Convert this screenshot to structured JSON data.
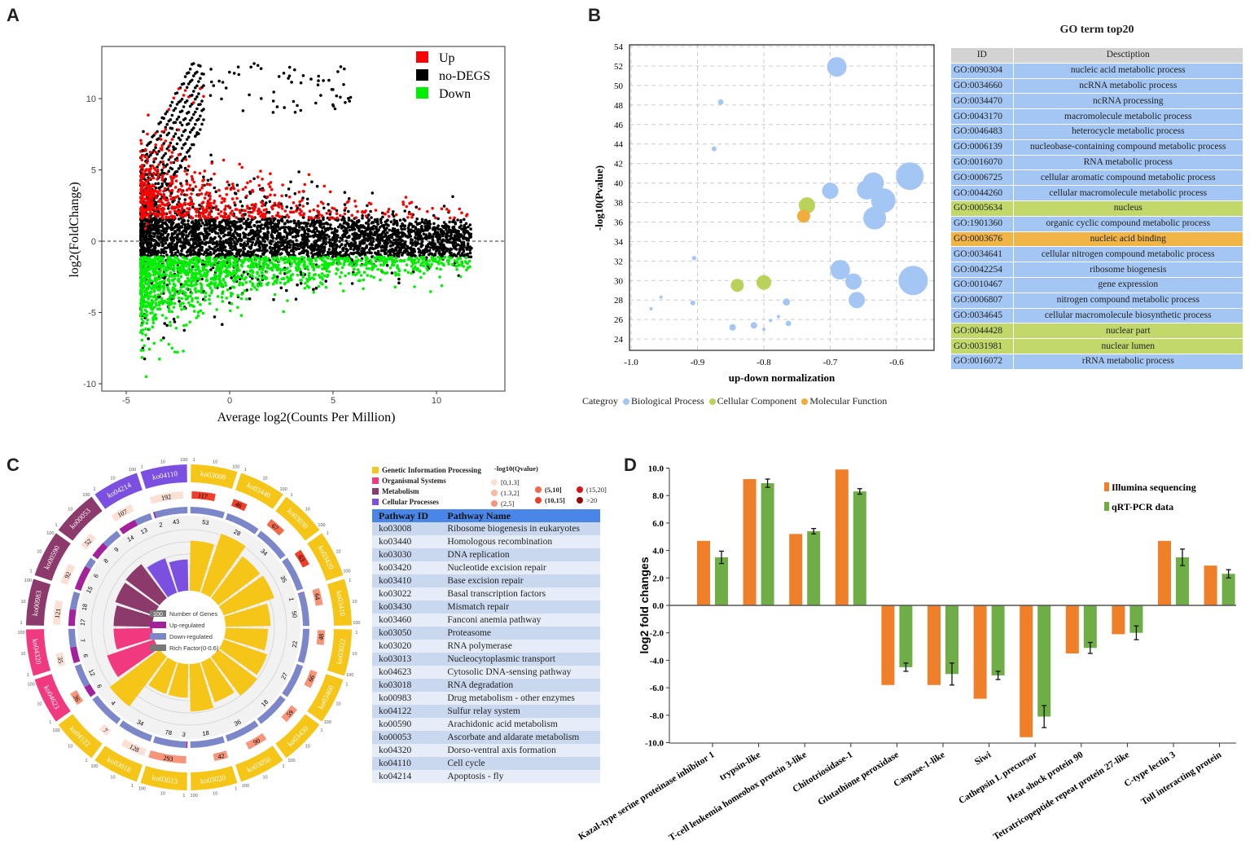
{
  "panels": {
    "a": "A",
    "b": "B",
    "c": "C",
    "d": "D"
  },
  "chart_data": [
    {
      "id": "A",
      "type": "scatter",
      "xlabel": "Average log2(Counts Per Million)",
      "ylabel": "log2(FoldChange)",
      "xlim": [
        -6.2,
        13.3
      ],
      "ylim": [
        -10.5,
        13.7
      ],
      "xticks": [
        -5,
        0,
        5,
        10
      ],
      "yticks": [
        10,
        5,
        0,
        -5,
        -10
      ],
      "reference_line_y": 0,
      "legend": [
        {
          "label": "Up",
          "color": "#ff0000"
        },
        {
          "label": "no-DEGS",
          "color": "#000000"
        },
        {
          "label": "Down",
          "color": "#00ee00"
        }
      ],
      "legend_position": "top-right"
    },
    {
      "id": "B",
      "type": "scatter",
      "xlabel": "up-down normalization",
      "ylabel": "-log10(Pvalue)",
      "xlim": [
        -1.0,
        -0.544
      ],
      "ylim": [
        22.8,
        54
      ],
      "xticks": [
        "-1.0",
        "-0.9",
        "-0.8",
        "-0.7",
        "-0.6"
      ],
      "yticks": [
        24,
        26,
        28,
        30,
        32,
        34,
        36,
        38,
        40,
        42,
        44,
        46,
        48,
        50,
        52,
        54
      ],
      "grid": true,
      "legend_title": "Categroy",
      "legend": [
        {
          "label": "Biological Process",
          "color": "#a4c6f4"
        },
        {
          "label": "Cellular Component",
          "color": "#b9d35a"
        },
        {
          "label": "Molecular Function",
          "color": "#f0ac3c"
        }
      ],
      "points": [
        {
          "x": -0.69,
          "y": 51.9,
          "size": 6,
          "cat": 0
        },
        {
          "x": -0.865,
          "y": 48.3,
          "size": 1.7,
          "cat": 0
        },
        {
          "x": -0.875,
          "y": 43.5,
          "size": 1.5,
          "cat": 0
        },
        {
          "x": -0.58,
          "y": 40.7,
          "size": 8.5,
          "cat": 0
        },
        {
          "x": -0.635,
          "y": 40.0,
          "size": 6.5,
          "cat": 0
        },
        {
          "x": -0.645,
          "y": 39.3,
          "size": 6,
          "cat": 0
        },
        {
          "x": -0.62,
          "y": 38.2,
          "size": 7.5,
          "cat": 0
        },
        {
          "x": -0.633,
          "y": 36.4,
          "size": 7,
          "cat": 0
        },
        {
          "x": -0.7,
          "y": 39.2,
          "size": 5,
          "cat": 0
        },
        {
          "x": -0.735,
          "y": 37.7,
          "size": 5,
          "cat": 1
        },
        {
          "x": -0.74,
          "y": 36.6,
          "size": 4,
          "cat": 2
        },
        {
          "x": -0.905,
          "y": 32.3,
          "size": 1.3,
          "cat": 0
        },
        {
          "x": -0.685,
          "y": 31.1,
          "size": 6,
          "cat": 0
        },
        {
          "x": -0.665,
          "y": 29.9,
          "size": 5,
          "cat": 0
        },
        {
          "x": -0.575,
          "y": 30.0,
          "size": 9,
          "cat": 0
        },
        {
          "x": -0.66,
          "y": 28.0,
          "size": 5,
          "cat": 0
        },
        {
          "x": -0.84,
          "y": 29.5,
          "size": 4,
          "cat": 1
        },
        {
          "x": -0.8,
          "y": 29.8,
          "size": 4.5,
          "cat": 1
        },
        {
          "x": -0.955,
          "y": 28.3,
          "size": 1,
          "cat": 0
        },
        {
          "x": -0.907,
          "y": 27.7,
          "size": 1.5,
          "cat": 0
        },
        {
          "x": -0.97,
          "y": 27.1,
          "size": 1,
          "cat": 0
        },
        {
          "x": -0.766,
          "y": 27.8,
          "size": 2.2,
          "cat": 0
        },
        {
          "x": -0.778,
          "y": 26.3,
          "size": 1,
          "cat": 0
        },
        {
          "x": -0.79,
          "y": 25.9,
          "size": 1,
          "cat": 0
        },
        {
          "x": -0.847,
          "y": 25.2,
          "size": 2,
          "cat": 0
        },
        {
          "x": -0.815,
          "y": 25.4,
          "size": 2,
          "cat": 0
        },
        {
          "x": -0.8,
          "y": 25.0,
          "size": 1,
          "cat": 0
        },
        {
          "x": -0.763,
          "y": 25.6,
          "size": 1.7,
          "cat": 0
        }
      ]
    },
    {
      "id": "C",
      "type": "circos",
      "center_legend": [
        {
          "label": "Number of Genes",
          "value": "100",
          "color": "#777777"
        },
        {
          "label": "Up-regulated",
          "color": "#a3229b"
        },
        {
          "label": "Down-regulated",
          "color": "#7c87c9"
        },
        {
          "label": "Rich Factor(0-0.6)",
          "color": "#777777"
        }
      ],
      "scale_labels": [
        "1",
        "10",
        "100"
      ],
      "categories": [
        {
          "label": "Genetic Information Processing",
          "color": "#f5c518"
        },
        {
          "label": "Organismal Systems",
          "color": "#f0397e"
        },
        {
          "label": "Metabolism",
          "color": "#8b3a6b"
        },
        {
          "label": "Cellular Processes",
          "color": "#7b4fe0"
        }
      ],
      "qvalue_legend_title": "-log10(Qvalue)",
      "qvalue_bins": [
        {
          "label": "[0,1.3]",
          "color": "#fbe0d6"
        },
        {
          "label": "(1.3,2]",
          "color": "#f7b9a3"
        },
        {
          "label": "(2,5]",
          "color": "#f5957a"
        },
        {
          "label": "(5,10]",
          "color": "#f26a4a"
        },
        {
          "label": "(10,15]",
          "color": "#ef3e2a"
        },
        {
          "label": "(15,20]",
          "color": "#d11a1a"
        },
        {
          "label": ">20",
          "color": "#8e0b0b"
        }
      ],
      "segments": [
        {
          "id": "ko03008",
          "cat": 0,
          "genes": 117,
          "qbin": 4,
          "up": 0,
          "down": 53,
          "rich": 0.4
        },
        {
          "id": "ko03440",
          "cat": 0,
          "genes": 46,
          "qbin": 4,
          "up": 0,
          "down": 28,
          "rich": 0.5
        },
        {
          "id": "ko03030",
          "cat": 0,
          "genes": 67,
          "qbin": 3,
          "up": 0,
          "down": 34,
          "rich": 0.42
        },
        {
          "id": "ko03420",
          "cat": 0,
          "genes": 63,
          "qbin": 4,
          "up": 0,
          "down": 35,
          "rich": 0.43
        },
        {
          "id": "ko03410",
          "cat": 0,
          "genes": 64,
          "qbin": 2,
          "up": 1,
          "down": 50,
          "rich": 0.36
        },
        {
          "id": "ko03022",
          "cat": 0,
          "genes": 48,
          "qbin": 2,
          "up": 0,
          "down": 22,
          "rich": 0.34
        },
        {
          "id": "ko03460",
          "cat": 0,
          "genes": 66,
          "qbin": 2,
          "up": 0,
          "down": 27,
          "rich": 0.37
        },
        {
          "id": "ko03430",
          "cat": 0,
          "genes": 59,
          "qbin": 2,
          "up": 0,
          "down": 18,
          "rich": 0.39
        },
        {
          "id": "ko03050",
          "cat": 0,
          "genes": 90,
          "qbin": 2,
          "up": 0,
          "down": 36,
          "rich": 0.34
        },
        {
          "id": "ko03020",
          "cat": 0,
          "genes": 42,
          "qbin": 2,
          "up": 0,
          "down": 18,
          "rich": 0.38
        },
        {
          "id": "ko03013",
          "cat": 0,
          "genes": 293,
          "qbin": 2,
          "up": 3,
          "down": 78,
          "rich": 0.27
        },
        {
          "id": "ko03018",
          "cat": 0,
          "genes": 128,
          "qbin": 0,
          "up": 0,
          "down": 34,
          "rich": 0.27
        },
        {
          "id": "ko04122",
          "cat": 0,
          "genes": 7,
          "qbin": 0,
          "up": 0,
          "down": 4,
          "rich": 0.5
        },
        {
          "id": "ko04623",
          "cat": 1,
          "genes": 36,
          "qbin": 2,
          "up": 6,
          "down": 12,
          "rich": 0.4
        },
        {
          "id": "ko04320",
          "cat": 1,
          "genes": 35,
          "qbin": 0,
          "up": 6,
          "down": 7,
          "rich": 0.31
        },
        {
          "id": "ko00983",
          "cat": 2,
          "genes": 121,
          "qbin": 0,
          "up": 17,
          "down": 18,
          "rich": 0.31
        },
        {
          "id": "ko00590",
          "cat": 2,
          "genes": 92,
          "qbin": 0,
          "up": 15,
          "down": 6,
          "rich": 0.33
        },
        {
          "id": "ko00053",
          "cat": 2,
          "genes": 52,
          "qbin": 0,
          "up": 8,
          "down": 9,
          "rich": 0.34
        },
        {
          "id": "ko04214",
          "cat": 3,
          "genes": 107,
          "qbin": 0,
          "up": 14,
          "down": 13,
          "rich": 0.29
        },
        {
          "id": "ko04110",
          "cat": 3,
          "genes": 192,
          "qbin": 0,
          "up": 2,
          "down": 43,
          "rich": 0.25
        }
      ]
    },
    {
      "id": "D",
      "type": "bar",
      "ylabel": "log2 fold changes",
      "ylim": [
        -10,
        10
      ],
      "yticks": [
        "10.0",
        "8.0",
        "6.0",
        "4.0",
        "2.0",
        "0.0",
        "-2.0",
        "-4.0",
        "-6.0",
        "-8.0",
        "-10.0"
      ],
      "categories": [
        "Kazal-type serine proteinase inhibitor 1",
        "trypsin-like",
        "T-cell leukemia homeobox protein 3-like",
        "Chitotriosidase-1",
        "Glutathione peroxidase",
        "Caspase-1-like",
        "Siwi",
        "Cathepsin L precursor",
        "Heat shock protein 90",
        "Tetratricopeptide repeat protein 27-like",
        "C-type lectin 3",
        "Toll interacting protein"
      ],
      "series": [
        {
          "name": "Illumina sequencing",
          "color": "#f07f2a",
          "values": [
            4.7,
            9.2,
            5.2,
            9.9,
            -5.8,
            -5.8,
            -6.8,
            -9.6,
            -3.5,
            -2.1,
            4.7,
            2.9
          ]
        },
        {
          "name": "qRT-PCR data",
          "color": "#6fad46",
          "values": [
            3.5,
            8.9,
            5.4,
            8.3,
            -4.5,
            -5.0,
            -5.1,
            -8.1,
            -3.1,
            -2.0,
            3.5,
            2.3
          ],
          "errors": [
            0.45,
            0.3,
            0.2,
            0.2,
            0.3,
            0.8,
            0.3,
            0.8,
            0.4,
            0.5,
            0.6,
            0.3
          ]
        }
      ],
      "legend_position": "top-right"
    }
  ],
  "go_table": {
    "title": "GO term top20",
    "headers": [
      "ID",
      "Desctiption"
    ],
    "rows": [
      {
        "id": "GO:0090304",
        "desc": "nucleic acid metabolic process",
        "cat": 0
      },
      {
        "id": "GO:0034660",
        "desc": "ncRNA metabolic process",
        "cat": 0
      },
      {
        "id": "GO:0034470",
        "desc": "ncRNA processing",
        "cat": 0
      },
      {
        "id": "GO:0043170",
        "desc": "macromolecule metabolic process",
        "cat": 0
      },
      {
        "id": "GO:0046483",
        "desc": "heterocycle metabolic process",
        "cat": 0
      },
      {
        "id": "GO:0006139",
        "desc": "nucleobase-containing compound metabolic process",
        "cat": 0
      },
      {
        "id": "GO:0016070",
        "desc": "RNA metabolic process",
        "cat": 0
      },
      {
        "id": "GO:0006725",
        "desc": "cellular aromatic compound metabolic process",
        "cat": 0
      },
      {
        "id": "GO:0044260",
        "desc": "cellular macromolecule metabolic process",
        "cat": 0
      },
      {
        "id": "GO:0005634",
        "desc": "nucleus",
        "cat": 1
      },
      {
        "id": "GO:1901360",
        "desc": "organic cyclic compound metabolic process",
        "cat": 0
      },
      {
        "id": "GO:0003676",
        "desc": "nucleic acid binding",
        "cat": 2
      },
      {
        "id": "GO:0034641",
        "desc": "cellular nitrogen compound metabolic process",
        "cat": 0
      },
      {
        "id": "GO:0042254",
        "desc": "ribosome biogenesis",
        "cat": 0
      },
      {
        "id": "GO:0010467",
        "desc": "gene expression",
        "cat": 0
      },
      {
        "id": "GO:0006807",
        "desc": "nitrogen compound metabolic process",
        "cat": 0
      },
      {
        "id": "GO:0034645",
        "desc": "cellular macromolecule biosynthetic process",
        "cat": 0
      },
      {
        "id": "GO:0044428",
        "desc": "nuclear part",
        "cat": 1
      },
      {
        "id": "GO:0031981",
        "desc": "nuclear lumen",
        "cat": 1
      },
      {
        "id": "GO:0016072",
        "desc": "rRNA metabolic process",
        "cat": 0
      }
    ],
    "row_colors": [
      "#a4c6f4",
      "#c3d86a",
      "#f0b447"
    ]
  },
  "kegg_table": {
    "headers": [
      "Pathway ID",
      "Pathway Name"
    ],
    "rows": [
      [
        "ko03008",
        "Ribosome biogenesis in eukaryotes"
      ],
      [
        "ko03440",
        "Homologous recombination"
      ],
      [
        "ko03030",
        "DNA replication"
      ],
      [
        "ko03420",
        "Nucleotide excision repair"
      ],
      [
        "ko03410",
        "Base excision repair"
      ],
      [
        "ko03022",
        "Basal transcription factors"
      ],
      [
        "ko03430",
        "Mismatch repair"
      ],
      [
        "ko03460",
        "Fanconi anemia pathway"
      ],
      [
        "ko03050",
        "Proteasome"
      ],
      [
        "ko03020",
        "RNA polymerase"
      ],
      [
        "ko03013",
        "Nucleocytoplasmic transport"
      ],
      [
        "ko04623",
        "Cytosolic DNA-sensing pathway"
      ],
      [
        "ko03018",
        "RNA degradation"
      ],
      [
        "ko00983",
        "Drug metabolism - other enzymes"
      ],
      [
        "ko04122",
        "Sulfur relay system"
      ],
      [
        "ko00590",
        "Arachidonic acid metabolism"
      ],
      [
        "ko00053",
        "Ascorbate and aldarate metabolism"
      ],
      [
        "ko04320",
        "Dorso-ventral axis formation"
      ],
      [
        "ko04110",
        "Cell cycle"
      ],
      [
        "ko04214",
        "Apoptosis - fly"
      ]
    ]
  }
}
